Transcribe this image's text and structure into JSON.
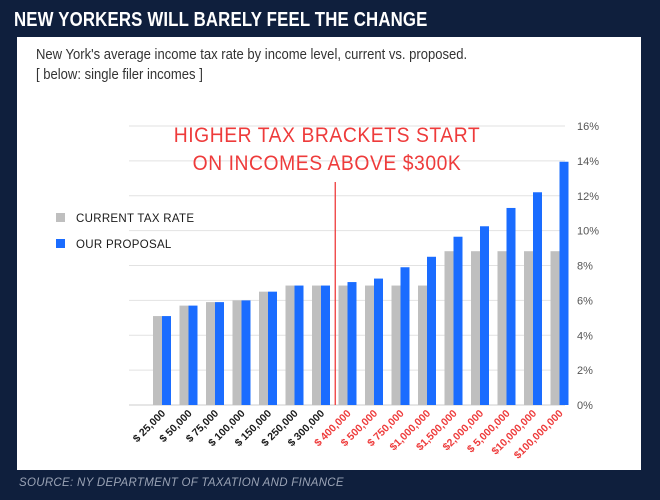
{
  "header": {
    "title": "NEW YORKERS WILL BARELY FEEL THE CHANGE"
  },
  "subtitle": {
    "line1": "New York's average income tax rate by income level, current vs. proposed.",
    "line2": "[ below: single filer incomes ]"
  },
  "annotation": {
    "line1": "HIGHER TAX BRACKETS START",
    "line2": "ON INCOMES ABOVE $300K"
  },
  "source": "SOURCE: NY DEPARTMENT OF TAXATION AND FINANCE",
  "colors": {
    "background": "#0f1f3d",
    "current": "#bfbfbf",
    "proposal": "#1a6cff",
    "highlight": "#ee3b3b",
    "gridline": "#e2e2e2"
  },
  "chart_data": {
    "type": "bar",
    "categories": [
      "$ 25,000",
      "$ 50,000",
      "$ 75,000",
      "$ 100,000",
      "$ 150,000",
      "$ 250,000",
      "$ 300,000",
      "$ 400,000",
      "$ 500,000",
      "$ 750,000",
      "$1,000,000",
      "$1,500,000",
      "$2,000,000",
      "$ 5,000,000",
      "$10,000,000",
      "$100,000,000"
    ],
    "highlight_from_index": 7,
    "series": [
      {
        "name": "CURRENT TAX RATE",
        "values": [
          5.1,
          5.7,
          5.9,
          6.0,
          6.5,
          6.85,
          6.85,
          6.85,
          6.85,
          6.85,
          6.85,
          8.82,
          8.82,
          8.82,
          8.82,
          8.82
        ]
      },
      {
        "name": "OUR PROPOSAL",
        "values": [
          5.1,
          5.7,
          5.9,
          6.0,
          6.5,
          6.85,
          6.85,
          7.05,
          7.25,
          7.9,
          8.5,
          9.65,
          10.25,
          11.3,
          12.2,
          13.95
        ]
      }
    ],
    "y_ticks": [
      "0%",
      "2%",
      "4%",
      "6%",
      "8%",
      "10%",
      "12%",
      "14%",
      "16%"
    ],
    "ylim": [
      0,
      16
    ],
    "y_axis_side": "right",
    "grid": true,
    "legend_position": "left",
    "divider_after_index": 6
  }
}
